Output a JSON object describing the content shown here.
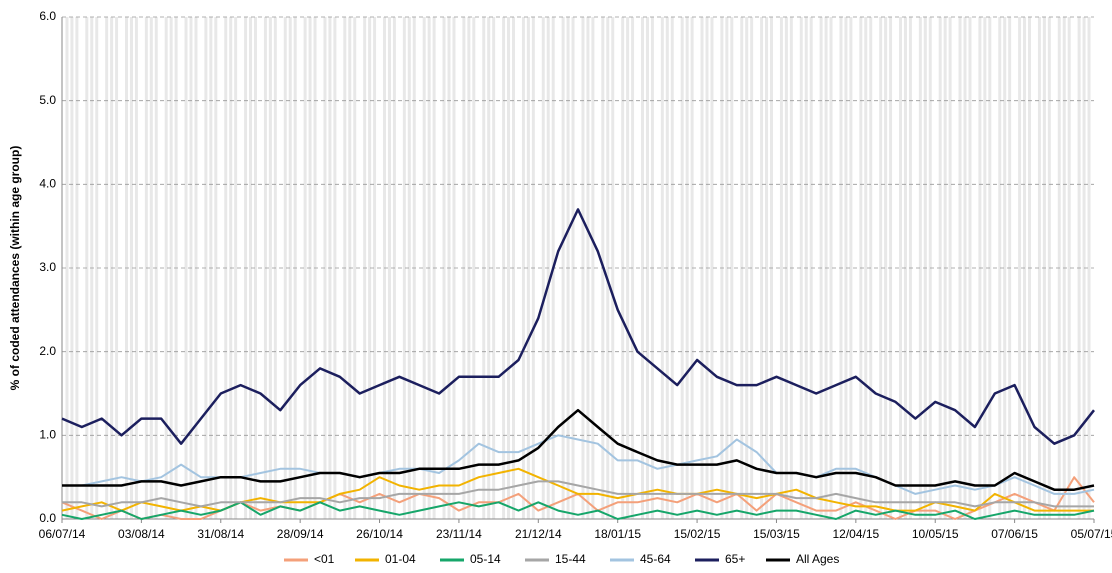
{
  "chart_data": {
    "type": "line",
    "y_label": "% of coded attendances (within age group)",
    "categories": [
      "06/07/14",
      null,
      null,
      null,
      "03/08/14",
      null,
      null,
      null,
      "31/08/14",
      null,
      null,
      null,
      "28/09/14",
      null,
      null,
      null,
      "26/10/14",
      null,
      null,
      null,
      "23/11/14",
      null,
      null,
      null,
      "21/12/14",
      null,
      null,
      null,
      "18/01/15",
      null,
      null,
      null,
      "15/02/15",
      null,
      null,
      null,
      "15/03/15",
      null,
      null,
      null,
      "12/04/15",
      null,
      null,
      null,
      "10/05/15",
      null,
      null,
      null,
      "07/06/15",
      null,
      null,
      null,
      "05/07/15"
    ],
    "ylim": [
      0,
      6
    ],
    "yticks": [
      {
        "value": 0,
        "label": "0.0"
      },
      {
        "value": 1,
        "label": "1.0"
      },
      {
        "value": 2,
        "label": "2.0"
      },
      {
        "value": 3,
        "label": "3.0"
      },
      {
        "value": 4,
        "label": "4.0"
      },
      {
        "value": 5,
        "label": "5.0"
      },
      {
        "value": 6,
        "label": "6.0"
      }
    ],
    "grid": true,
    "legend": "bottom",
    "series": [
      {
        "name": "<01",
        "color": "#f4a07a",
        "values": [
          0.2,
          0.1,
          0,
          0.1,
          0,
          0.05,
          0,
          0,
          0.1,
          0.2,
          0.1,
          0.15,
          0.1,
          0.2,
          0.3,
          0.2,
          0.3,
          0.2,
          0.3,
          0.25,
          0.1,
          0.2,
          0.2,
          0.3,
          0.1,
          0.2,
          0.3,
          0.1,
          0.2,
          0.2,
          0.25,
          0.2,
          0.3,
          0.2,
          0.3,
          0.1,
          0.3,
          0.2,
          0.1,
          0.1,
          0.2,
          0.1,
          0,
          0.1,
          0.1,
          0,
          0.1,
          0.2,
          0.3,
          0.2,
          0.1,
          0.5,
          0.2
        ]
      },
      {
        "name": "01-04",
        "color": "#f2b300",
        "values": [
          0.1,
          0.15,
          0.2,
          0.1,
          0.2,
          0.15,
          0.1,
          0.15,
          0.1,
          0.2,
          0.25,
          0.2,
          0.2,
          0.2,
          0.3,
          0.35,
          0.5,
          0.4,
          0.35,
          0.4,
          0.4,
          0.5,
          0.55,
          0.6,
          0.5,
          0.4,
          0.3,
          0.3,
          0.25,
          0.3,
          0.35,
          0.3,
          0.3,
          0.35,
          0.3,
          0.25,
          0.3,
          0.35,
          0.25,
          0.2,
          0.15,
          0.15,
          0.1,
          0.1,
          0.2,
          0.15,
          0.1,
          0.3,
          0.2,
          0.1,
          0.1,
          0.1,
          0.1
        ]
      },
      {
        "name": "05-14",
        "color": "#16a66a",
        "values": [
          0.05,
          0,
          0.05,
          0.1,
          0,
          0.05,
          0.1,
          0.05,
          0.1,
          0.2,
          0.05,
          0.15,
          0.1,
          0.2,
          0.1,
          0.15,
          0.1,
          0.05,
          0.1,
          0.15,
          0.2,
          0.15,
          0.2,
          0.1,
          0.2,
          0.1,
          0.05,
          0.1,
          0,
          0.05,
          0.1,
          0.05,
          0.1,
          0.05,
          0.1,
          0.05,
          0.1,
          0.1,
          0.05,
          0,
          0.1,
          0.05,
          0.1,
          0.05,
          0.05,
          0.1,
          0,
          0.05,
          0.1,
          0.05,
          0.05,
          0.05,
          0.1
        ]
      },
      {
        "name": "15-44",
        "color": "#a6a6a6",
        "values": [
          0.2,
          0.2,
          0.15,
          0.2,
          0.2,
          0.25,
          0.2,
          0.15,
          0.2,
          0.2,
          0.2,
          0.2,
          0.25,
          0.25,
          0.2,
          0.25,
          0.25,
          0.3,
          0.3,
          0.3,
          0.3,
          0.35,
          0.35,
          0.4,
          0.45,
          0.45,
          0.4,
          0.35,
          0.3,
          0.3,
          0.3,
          0.3,
          0.3,
          0.3,
          0.3,
          0.3,
          0.3,
          0.25,
          0.25,
          0.3,
          0.25,
          0.2,
          0.2,
          0.2,
          0.2,
          0.2,
          0.15,
          0.2,
          0.2,
          0.2,
          0.15,
          0.15,
          0.15
        ]
      },
      {
        "name": "45-64",
        "color": "#a3c4e0",
        "values": [
          0.4,
          0.4,
          0.45,
          0.5,
          0.45,
          0.5,
          0.65,
          0.5,
          0.5,
          0.5,
          0.55,
          0.6,
          0.6,
          0.55,
          0.55,
          0.5,
          0.55,
          0.6,
          0.6,
          0.55,
          0.7,
          0.9,
          0.8,
          0.8,
          0.9,
          1.0,
          0.95,
          0.9,
          0.7,
          0.7,
          0.6,
          0.65,
          0.7,
          0.75,
          0.95,
          0.8,
          0.55,
          0.55,
          0.5,
          0.6,
          0.6,
          0.5,
          0.4,
          0.3,
          0.35,
          0.4,
          0.35,
          0.4,
          0.5,
          0.4,
          0.3,
          0.3,
          0.35
        ]
      },
      {
        "name": "65+",
        "color": "#1c1f5e",
        "values": [
          1.2,
          1.1,
          1.2,
          1.0,
          1.2,
          1.2,
          0.9,
          1.2,
          1.5,
          1.6,
          1.5,
          1.3,
          1.6,
          1.8,
          1.7,
          1.5,
          1.6,
          1.7,
          1.6,
          1.5,
          1.7,
          1.7,
          1.7,
          1.9,
          2.4,
          3.2,
          3.7,
          3.2,
          2.5,
          2.0,
          1.8,
          1.6,
          1.9,
          1.7,
          1.6,
          1.6,
          1.7,
          1.6,
          1.5,
          1.6,
          1.7,
          1.5,
          1.4,
          1.2,
          1.4,
          1.3,
          1.1,
          1.5,
          1.6,
          1.1,
          0.9,
          1.0,
          1.3
        ]
      },
      {
        "name": "All Ages",
        "color": "#000000",
        "values": [
          0.4,
          0.4,
          0.4,
          0.4,
          0.45,
          0.45,
          0.4,
          0.45,
          0.5,
          0.5,
          0.45,
          0.45,
          0.5,
          0.55,
          0.55,
          0.5,
          0.55,
          0.55,
          0.6,
          0.6,
          0.6,
          0.65,
          0.65,
          0.7,
          0.85,
          1.1,
          1.3,
          1.1,
          0.9,
          0.8,
          0.7,
          0.65,
          0.65,
          0.65,
          0.7,
          0.6,
          0.55,
          0.55,
          0.5,
          0.55,
          0.55,
          0.5,
          0.4,
          0.4,
          0.4,
          0.45,
          0.4,
          0.4,
          0.55,
          0.45,
          0.35,
          0.35,
          0.4
        ]
      }
    ]
  }
}
